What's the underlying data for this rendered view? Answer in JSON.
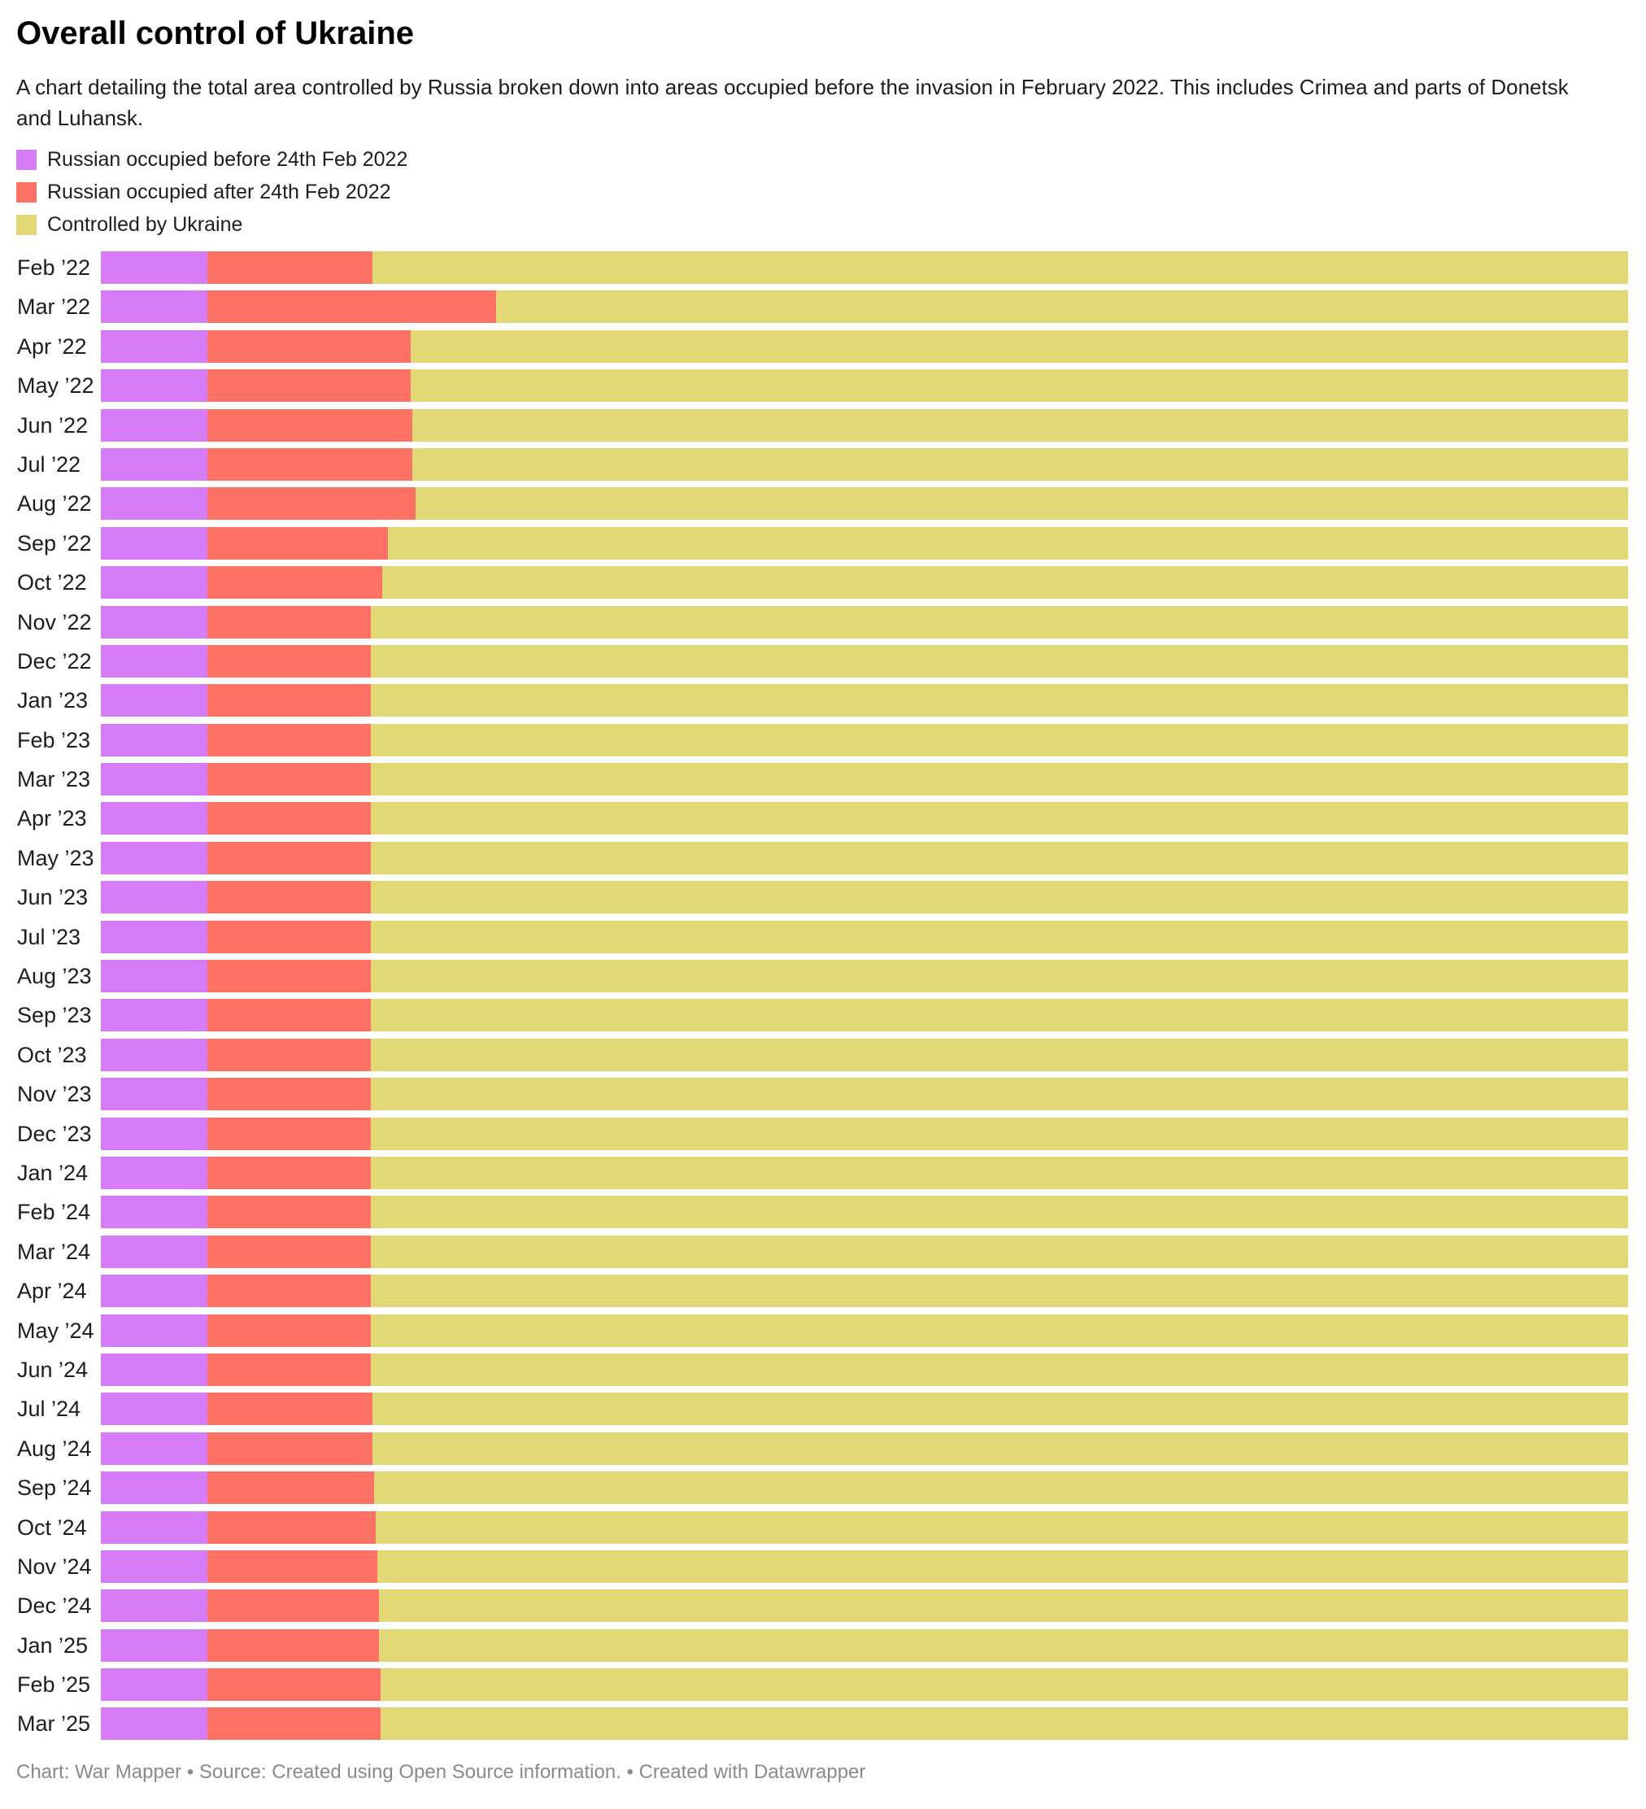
{
  "header": {
    "title": "Overall control of Ukraine",
    "subtitle": "A chart detailing the total area controlled by Russia broken down into areas occupied before the invasion in February 2022. This includes Crimea and parts of Donetsk and Luhansk."
  },
  "footer": {
    "text": "Chart: War Mapper • Source: Created using Open Source information. • Created with Datawrapper"
  },
  "colors": {
    "before": "#d77cf7",
    "after": "#fe7266",
    "ukraine": "#e2d875"
  },
  "chart_data": {
    "type": "bar",
    "stacked": true,
    "orientation": "horizontal",
    "value_format": "percent of Ukraine's total area",
    "xlim": [
      0,
      100
    ],
    "grid": false,
    "legend_position": "top-left",
    "categories": [
      "Feb ’22",
      "Mar ’22",
      "Apr ’22",
      "May ’22",
      "Jun ’22",
      "Jul ’22",
      "Aug ’22",
      "Sep ’22",
      "Oct ’22",
      "Nov ’22",
      "Dec ’22",
      "Jan ’23",
      "Feb ’23",
      "Mar ’23",
      "Apr ’23",
      "May ’23",
      "Jun ’23",
      "Jul ’23",
      "Aug ’23",
      "Sep ’23",
      "Oct ’23",
      "Nov ’23",
      "Dec ’23",
      "Jan ’24",
      "Feb ’24",
      "Mar ’24",
      "Apr ’24",
      "May ’24",
      "Jun ’24",
      "Jul ’24",
      "Aug ’24",
      "Sep ’24",
      "Oct ’24",
      "Nov ’24",
      "Dec ’24",
      "Jan ’25",
      "Feb ’25",
      "Mar ’25"
    ],
    "series": [
      {
        "key": "before",
        "name": "Russian occupied before 24th Feb 2022",
        "color": "#d77cf7",
        "values": [
          7.0,
          7.0,
          7.0,
          7.0,
          7.0,
          7.0,
          7.0,
          7.0,
          7.0,
          7.0,
          7.0,
          7.0,
          7.0,
          7.0,
          7.0,
          7.0,
          7.0,
          7.0,
          7.0,
          7.0,
          7.0,
          7.0,
          7.0,
          7.0,
          7.0,
          7.0,
          7.0,
          7.0,
          7.0,
          7.0,
          7.0,
          7.0,
          7.0,
          7.0,
          7.0,
          7.0,
          7.0,
          7.0
        ]
      },
      {
        "key": "after",
        "name": "Russian occupied after 24th Feb 2022",
        "color": "#fe7266",
        "values": [
          10.8,
          18.9,
          13.3,
          13.3,
          13.4,
          13.4,
          13.6,
          11.8,
          11.4,
          10.7,
          10.7,
          10.7,
          10.7,
          10.7,
          10.7,
          10.7,
          10.7,
          10.7,
          10.7,
          10.7,
          10.7,
          10.7,
          10.7,
          10.7,
          10.7,
          10.7,
          10.7,
          10.7,
          10.7,
          10.8,
          10.8,
          10.9,
          11.0,
          11.1,
          11.2,
          11.2,
          11.3,
          11.3
        ]
      },
      {
        "key": "ukraine",
        "name": "Controlled by Ukraine",
        "color": "#e2d875",
        "values": [
          82.2,
          74.1,
          79.7,
          79.7,
          79.6,
          79.6,
          79.4,
          81.2,
          81.6,
          82.3,
          82.3,
          82.3,
          82.3,
          82.3,
          82.3,
          82.3,
          82.3,
          82.3,
          82.3,
          82.3,
          82.3,
          82.3,
          82.3,
          82.3,
          82.3,
          82.3,
          82.3,
          82.3,
          82.3,
          82.2,
          82.2,
          82.1,
          82.0,
          81.9,
          81.8,
          81.8,
          81.7,
          81.7
        ]
      }
    ]
  }
}
